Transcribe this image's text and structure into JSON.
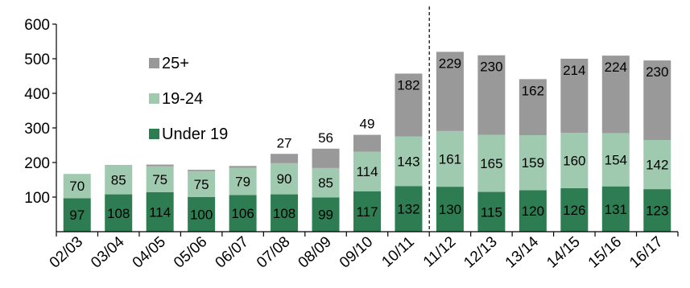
{
  "chart_data": {
    "type": "bar",
    "stacked": true,
    "title": "",
    "xlabel": "",
    "ylabel": "",
    "ylim": [
      0,
      600
    ],
    "yticks": [
      100,
      200,
      300,
      400,
      500,
      600
    ],
    "grid": false,
    "legend_position": "top-left",
    "categories": [
      "02/03",
      "03/04",
      "04/05",
      "05/06",
      "06/07",
      "07/08",
      "08/09",
      "09/10",
      "10/11",
      "11/12",
      "12/13",
      "13/14",
      "14/15",
      "15/16",
      "16/17"
    ],
    "series": [
      {
        "name": "Under 19",
        "color": "#2e7d52",
        "values": [
          97,
          108,
          114,
          100,
          106,
          108,
          99,
          117,
          132,
          130,
          115,
          120,
          126,
          131,
          123
        ],
        "labels": [
          "97",
          "108",
          "114",
          "100",
          "106",
          "108",
          "99",
          "117",
          "132",
          "130",
          "115",
          "120",
          "126",
          "131",
          "123"
        ]
      },
      {
        "name": "19-24",
        "color": "#9fcaaf",
        "values": [
          70,
          85,
          75,
          75,
          79,
          90,
          85,
          114,
          143,
          161,
          165,
          159,
          160,
          154,
          142
        ],
        "labels": [
          "70",
          "85",
          "75",
          "75",
          "79",
          "90",
          "85",
          "114",
          "143",
          "161",
          "165",
          "159",
          "160",
          "154",
          "142"
        ]
      },
      {
        "name": "25+",
        "color": "#999999",
        "values": [
          0,
          0,
          5,
          4,
          5,
          27,
          56,
          49,
          182,
          229,
          230,
          162,
          214,
          224,
          230
        ],
        "labels": [
          "",
          "",
          "",
          "",
          "",
          "27",
          "56",
          "49",
          "182",
          "229",
          "230",
          "162",
          "214",
          "224",
          "230"
        ]
      }
    ],
    "reference_line": {
      "between": [
        "10/11",
        "11/12"
      ],
      "style": "dashed"
    }
  }
}
